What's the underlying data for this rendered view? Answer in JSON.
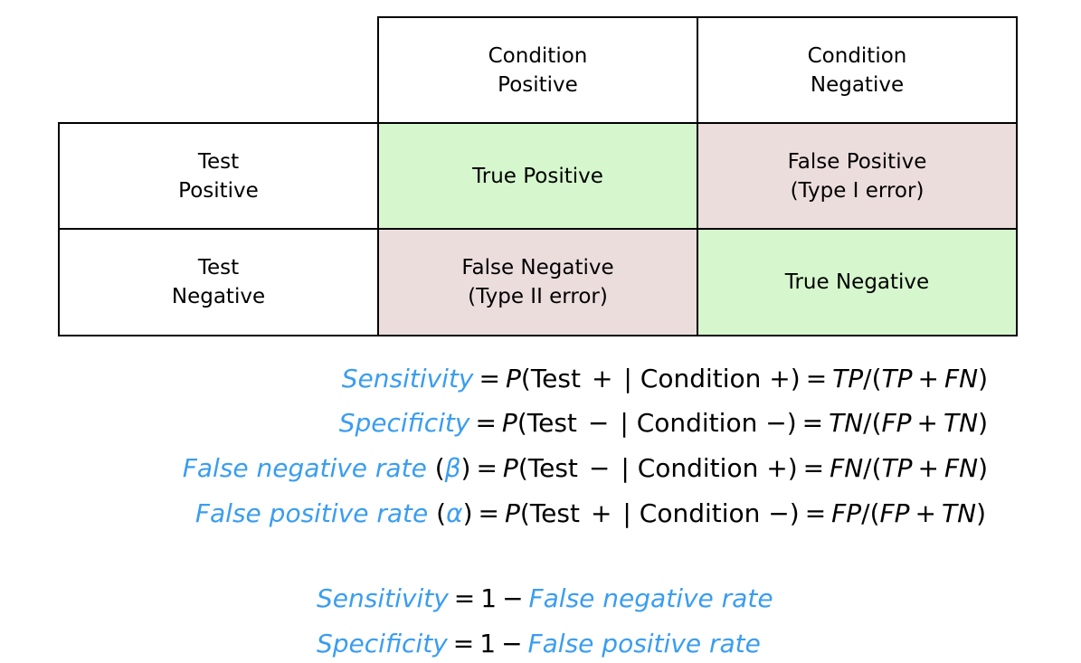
{
  "table": {
    "col_header_1": [
      "Condition",
      "Positive"
    ],
    "col_header_2": [
      "Condition",
      "Negative"
    ],
    "row_header_1": [
      "Test",
      "Positive"
    ],
    "row_header_2": [
      "Test",
      "Negative"
    ],
    "cell_tp": [
      "True Positive"
    ],
    "cell_fp": [
      "False Positive",
      "(Type I error)"
    ],
    "cell_fn": [
      "False Negative",
      "(Type II error)"
    ],
    "cell_tn": [
      "True Negative"
    ],
    "colors": {
      "correct": "#d6f7cd",
      "error": "#ecdddd",
      "border": "#000000"
    }
  },
  "formulas": {
    "accent_color": "#3a9df0",
    "rows": [
      {
        "term": "Sensitivity",
        "sym": "",
        "sign": "+",
        "cond_sign": "+",
        "num": "TP",
        "den1": "TP",
        "den2": "FN"
      },
      {
        "term": "Specificity",
        "sym": "",
        "sign": "−",
        "cond_sign": "−",
        "num": "TN",
        "den1": "FP",
        "den2": "TN"
      },
      {
        "term": "False negative rate",
        "sym": "β",
        "sign": "−",
        "cond_sign": "+",
        "num": "FN",
        "den1": "TP",
        "den2": "FN"
      },
      {
        "term": "False positive rate",
        "sym": "α",
        "sign": "+",
        "cond_sign": "−",
        "num": "FP",
        "den1": "FP",
        "den2": "TN"
      }
    ],
    "common": {
      "p": "P",
      "test": "Test",
      "condition": "Condition",
      "bar": "|"
    }
  },
  "identities": [
    {
      "left": "Sensitivity",
      "one": "1",
      "right": "False negative rate"
    },
    {
      "left": "Specificity",
      "one": "1",
      "right": "False positive rate"
    }
  ]
}
